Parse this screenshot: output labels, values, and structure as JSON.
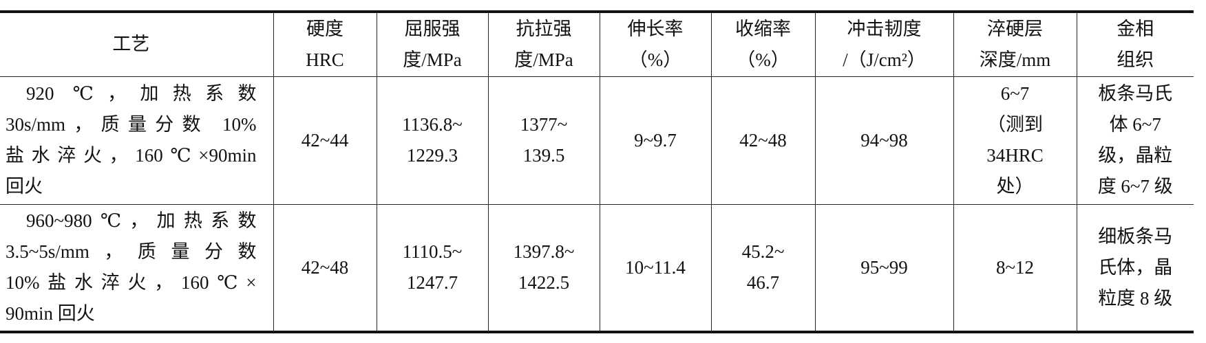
{
  "table": {
    "header": [
      [
        "工艺"
      ],
      [
        "硬度",
        "HRC"
      ],
      [
        "屈服强",
        "度/MPa"
      ],
      [
        "抗拉强",
        "度/MPa"
      ],
      [
        "伸长率",
        "（%）"
      ],
      [
        "收缩率",
        "（%）"
      ],
      [
        "冲击韧度",
        "/（J/cm²）"
      ],
      [
        "淬硬层",
        "深度/mm"
      ],
      [
        "金相",
        "组织"
      ]
    ],
    "rows": [
      [
        [
          "920 ℃，加热系数",
          "30s/mm，质量分数 10%",
          "盐水淬火，160℃×90min",
          "回火"
        ],
        [
          "42~44"
        ],
        [
          "1136.8~",
          "1229.3"
        ],
        [
          "1377~",
          "139.5"
        ],
        [
          "9~9.7"
        ],
        [
          "42~48"
        ],
        [
          "94~98"
        ],
        [
          "6~7",
          "（测到",
          "34HRC",
          "处）"
        ],
        [
          "板条马氏",
          "体 6~7",
          "级，晶粒",
          "度 6~7 级"
        ]
      ],
      [
        [
          "960~980℃，加热系数",
          "3.5~5s/mm，质量分数",
          "10%盐水淬火，160℃×",
          "90min 回火"
        ],
        [
          "42~48"
        ],
        [
          "1110.5~",
          "1247.7"
        ],
        [
          "1397.8~",
          "1422.5"
        ],
        [
          "10~11.4"
        ],
        [
          "45.2~",
          "46.7"
        ],
        [
          "95~99"
        ],
        [
          "8~12"
        ],
        [
          "细板条马",
          "氏体，晶",
          "粒度 8 级"
        ]
      ]
    ]
  }
}
